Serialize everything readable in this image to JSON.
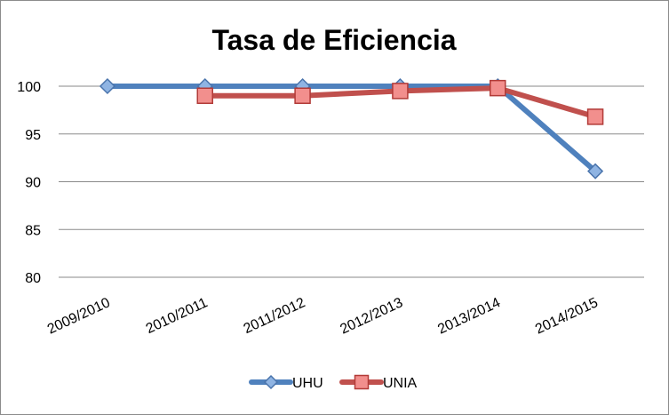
{
  "chart_data": {
    "type": "line",
    "title": "Tasa de Eficiencia",
    "xlabel": "",
    "ylabel": "",
    "categories": [
      "2009/2010",
      "2010/2011",
      "2011/2012",
      "2012/2013",
      "2013/2014",
      "2014/2015"
    ],
    "ylim": [
      80,
      100
    ],
    "yticks": [
      80,
      85,
      90,
      95,
      100
    ],
    "grid": true,
    "legend": "bottom",
    "series": [
      {
        "name": "UHU",
        "values": [
          100,
          100,
          100,
          100,
          100,
          91.1
        ],
        "color": "#4f81bd",
        "marker": "diamond"
      },
      {
        "name": "UNIA",
        "values": [
          null,
          99,
          99,
          99.5,
          99.8,
          96.8
        ],
        "color": "#c0504d",
        "marker": "square"
      }
    ]
  }
}
